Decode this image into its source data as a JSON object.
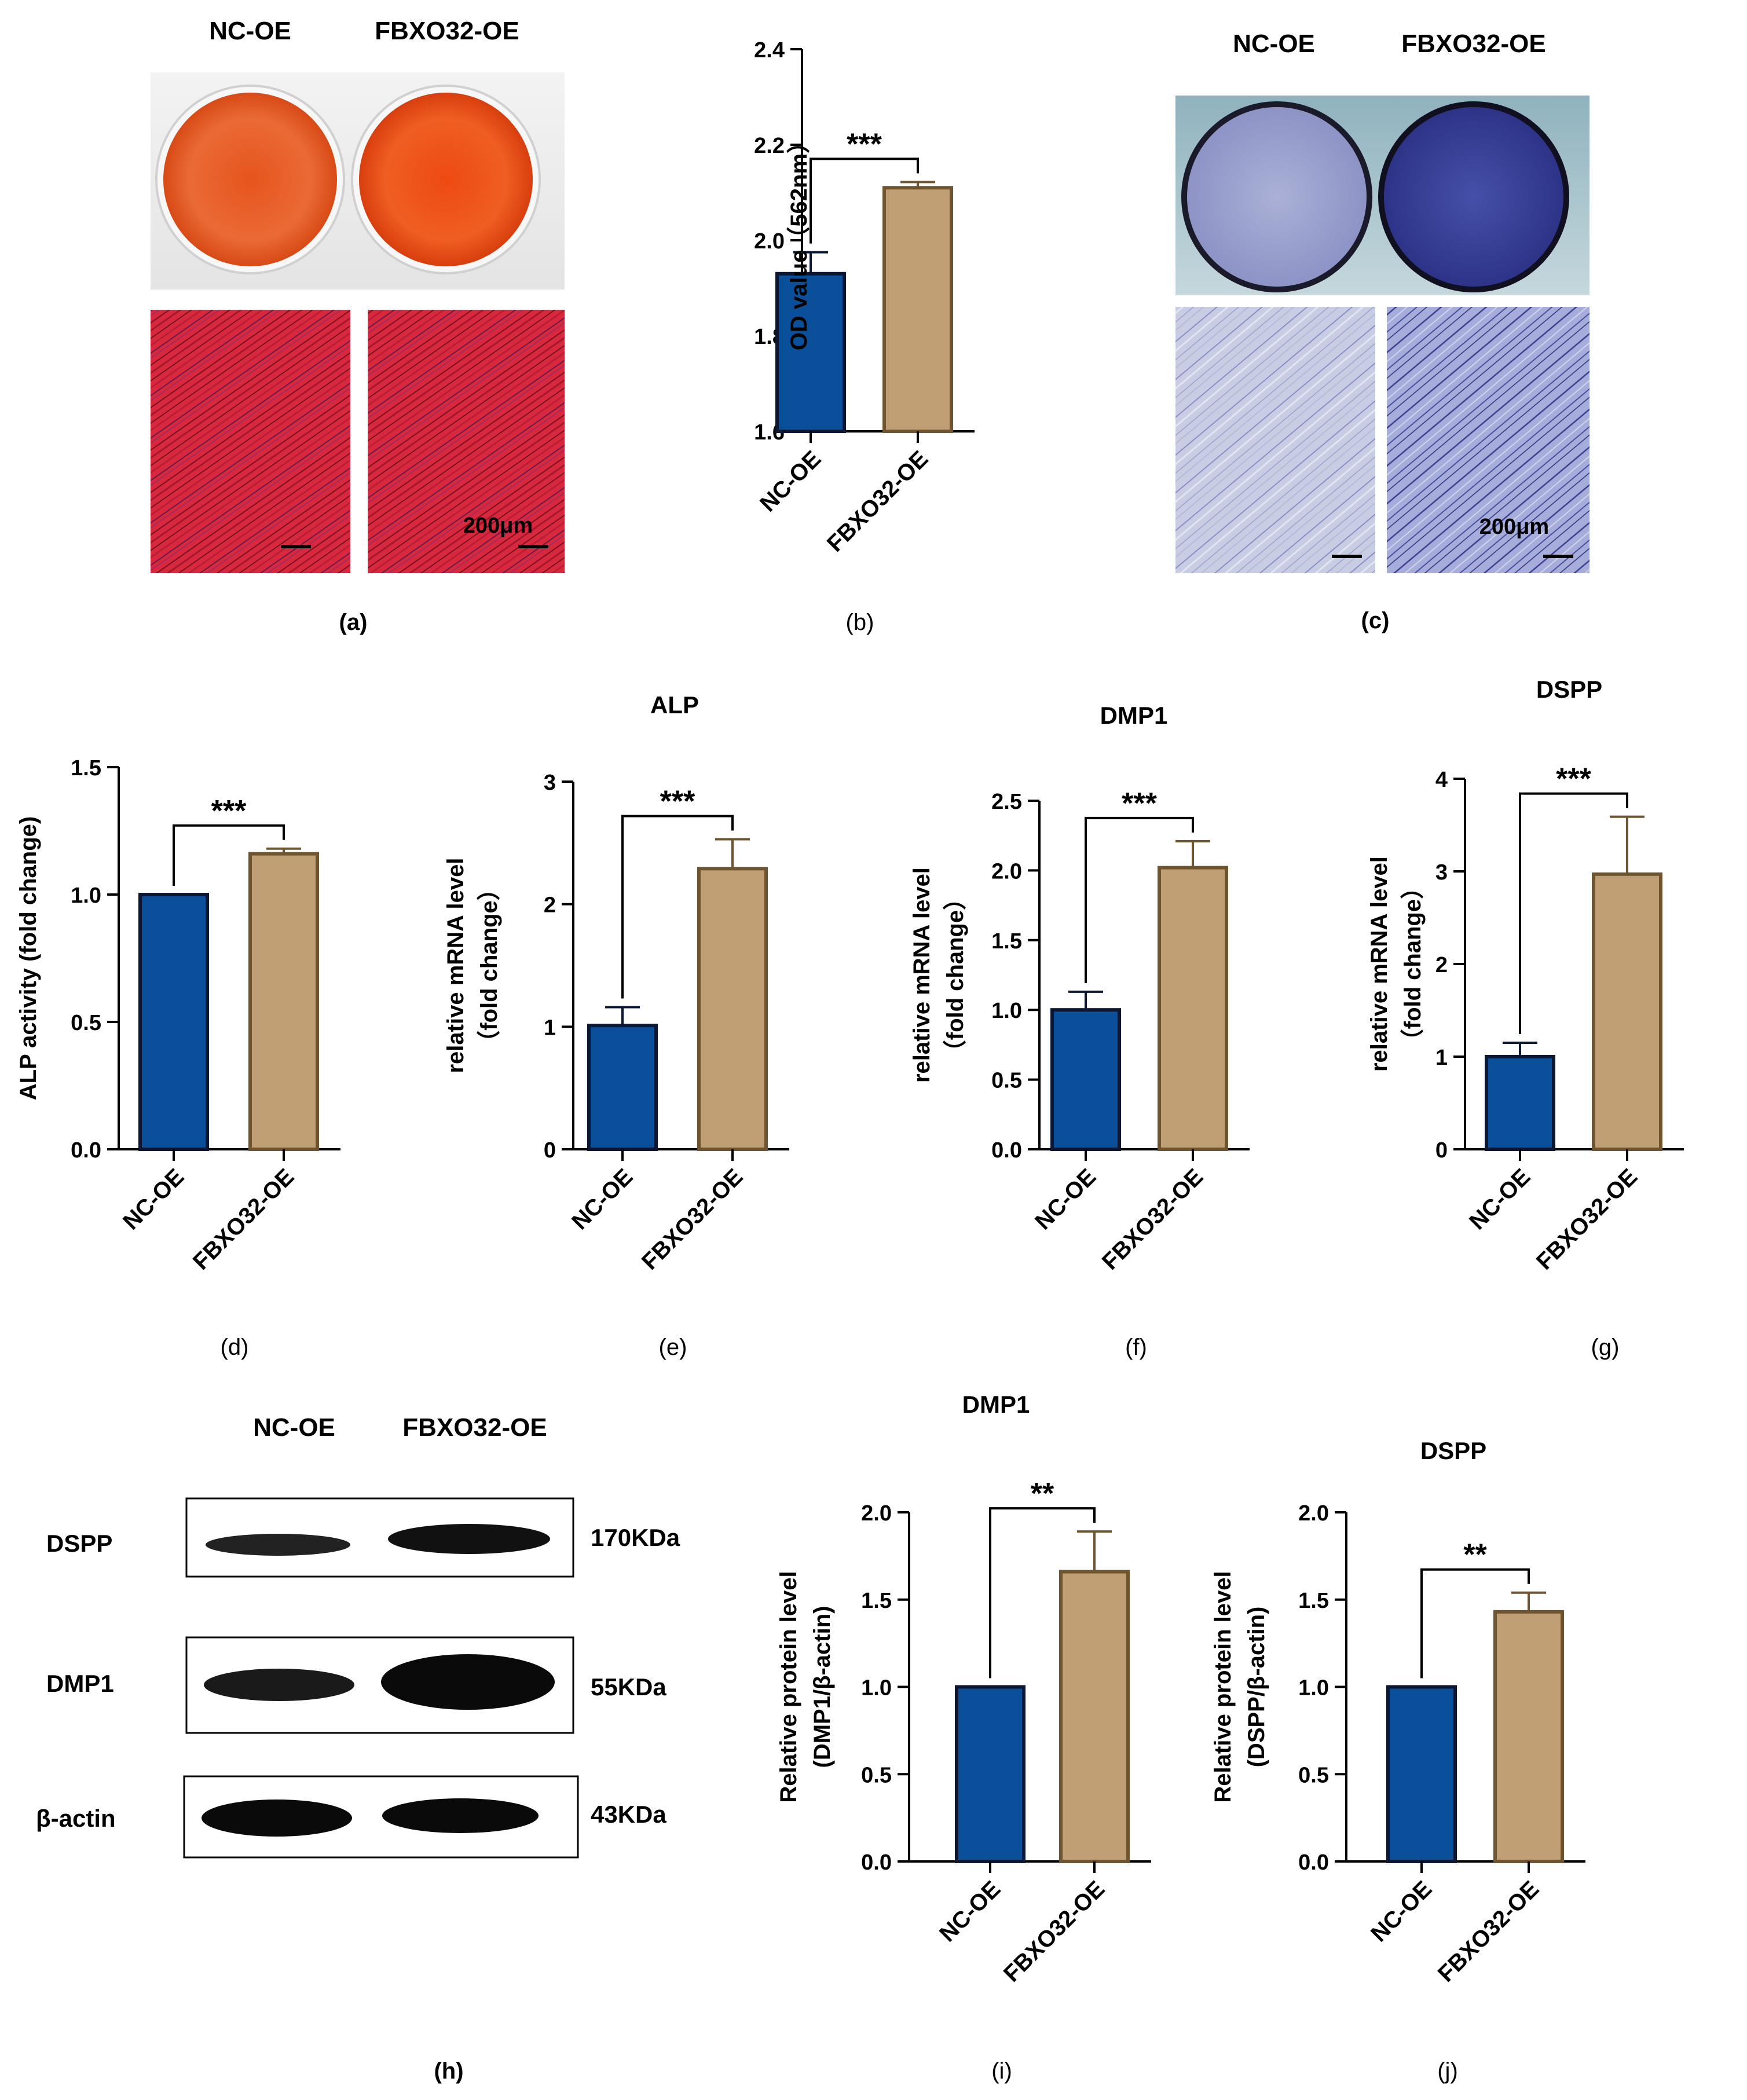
{
  "colors": {
    "nc": "#0a4f9a",
    "nc_edge": "#0b1733",
    "fb": "#bf9f73",
    "fb_edge": "#6e5530",
    "axis": "#000000"
  },
  "panel_a": {
    "label": "(a)",
    "headers": [
      "NC-OE",
      "FBXO32-OE"
    ],
    "scale_text": "200μm"
  },
  "panel_c": {
    "label": "(c)",
    "headers": [
      "NC-OE",
      "FBXO32-OE"
    ],
    "scale_text": "200μm"
  },
  "panel_h": {
    "label": "(h)",
    "headers": [
      "NC-OE",
      "FBXO32-OE"
    ],
    "bands": [
      {
        "protein": "DSPP",
        "size": "170KDa"
      },
      {
        "protein": "DMP1",
        "size": "55KDa"
      },
      {
        "protein": "β-actin",
        "size": "43KDa"
      }
    ]
  },
  "chart_data": [
    {
      "id": "b",
      "panel_label": "(b)",
      "type": "bar",
      "title": "",
      "ylabel": "OD value（562nm）",
      "categories": [
        "NC-OE",
        "FBXO32-OE"
      ],
      "values": [
        1.93,
        2.11
      ],
      "errors": [
        0.045,
        0.012
      ],
      "ylim": [
        1.6,
        2.4
      ],
      "yticks": [
        "1.6",
        "1.8",
        "2.0",
        "2.2",
        "2.4"
      ],
      "significance": "***"
    },
    {
      "id": "d",
      "panel_label": "(d)",
      "type": "bar",
      "title": "",
      "ylabel": "ALP activity (fold change)",
      "categories": [
        "NC-OE",
        "FBXO32-OE"
      ],
      "values": [
        1.0,
        1.16
      ],
      "errors": [
        0.0,
        0.02
      ],
      "ylim": [
        0,
        1.5
      ],
      "yticks": [
        "0.0",
        "0.5",
        "1.0",
        "1.5"
      ],
      "significance": "***"
    },
    {
      "id": "e",
      "panel_label": "(e)",
      "type": "bar",
      "title": "ALP",
      "ylabel": "relative mRNA level",
      "ylabel2": "（fold change）",
      "categories": [
        "NC-OE",
        "FBXO32-OE"
      ],
      "values": [
        1.01,
        2.29
      ],
      "errors": [
        0.15,
        0.24
      ],
      "ylim": [
        0,
        3
      ],
      "yticks": [
        "0",
        "1",
        "2",
        "3"
      ],
      "significance": "***"
    },
    {
      "id": "f",
      "panel_label": "(f)",
      "type": "bar",
      "title": "DMP1",
      "ylabel": "relative mRNA level",
      "ylabel2": "（fold change）",
      "categories": [
        "NC-OE",
        "FBXO32-OE"
      ],
      "values": [
        1.0,
        2.02
      ],
      "errors": [
        0.13,
        0.19
      ],
      "ylim": [
        0,
        2.5
      ],
      "yticks": [
        "0.0",
        "0.5",
        "1.0",
        "1.5",
        "2.0",
        "2.5"
      ],
      "significance": "***"
    },
    {
      "id": "g",
      "panel_label": "(g)",
      "type": "bar",
      "title": "DSPP",
      "ylabel": "relative mRNA level",
      "ylabel2": "（fold change）",
      "categories": [
        "NC-OE",
        "FBXO32-OE"
      ],
      "values": [
        1.0,
        2.97
      ],
      "errors": [
        0.15,
        0.62
      ],
      "ylim": [
        0,
        4
      ],
      "yticks": [
        "0",
        "1",
        "2",
        "3",
        "4"
      ],
      "significance": "***"
    },
    {
      "id": "i",
      "panel_label": "(i)",
      "type": "bar",
      "title": "DMP1",
      "ylabel": "Relative protein level",
      "ylabel2": "(DMP1/β-actin)",
      "categories": [
        "NC-OE",
        "FBXO32-OE"
      ],
      "values": [
        1.0,
        1.66
      ],
      "errors": [
        0.0,
        0.23
      ],
      "ylim": [
        0,
        2.0
      ],
      "yticks": [
        "0.0",
        "0.5",
        "1.0",
        "1.5",
        "2.0"
      ],
      "significance": "**"
    },
    {
      "id": "j",
      "panel_label": "(j)",
      "type": "bar",
      "title": "DSPP",
      "ylabel": "Relative protein level",
      "ylabel2": "(DSPP/β-actin)",
      "categories": [
        "NC-OE",
        "FBXO32-OE"
      ],
      "values": [
        1.0,
        1.43
      ],
      "errors": [
        0.0,
        0.11
      ],
      "ylim": [
        0,
        2.0
      ],
      "yticks": [
        "0.0",
        "0.5",
        "1.0",
        "1.5",
        "2.0"
      ],
      "significance": "**"
    }
  ]
}
